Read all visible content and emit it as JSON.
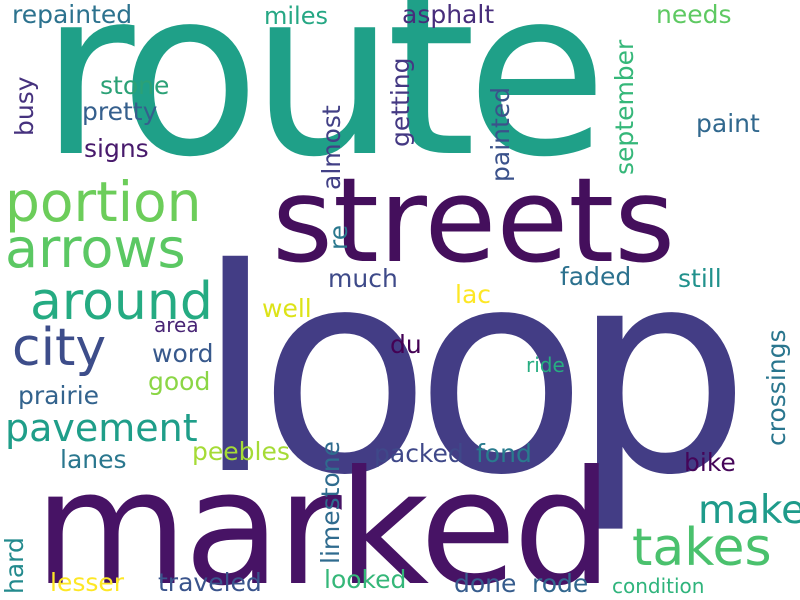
{
  "words": [
    {
      "text": "route",
      "color": "#1fa088",
      "vertical": false
    },
    {
      "text": "loop",
      "color": "#433d85",
      "vertical": false
    },
    {
      "text": "marked",
      "color": "#471365",
      "vertical": false
    },
    {
      "text": "streets",
      "color": "#440f5c",
      "vertical": false
    },
    {
      "text": "portion",
      "color": "#6ccd5a",
      "vertical": false
    },
    {
      "text": "arrows",
      "color": "#5bc863",
      "vertical": false
    },
    {
      "text": "around",
      "color": "#25ab82",
      "vertical": false
    },
    {
      "text": "city",
      "color": "#3d4d8a",
      "vertical": false
    },
    {
      "text": "takes",
      "color": "#4ac16d",
      "vertical": false
    },
    {
      "text": "pavement",
      "color": "#1f9e89",
      "vertical": false
    },
    {
      "text": "make",
      "color": "#1e9b8a",
      "vertical": false
    },
    {
      "text": "repainted",
      "color": "#2c728e",
      "vertical": false
    },
    {
      "text": "miles",
      "color": "#26a784",
      "vertical": false
    },
    {
      "text": "asphalt",
      "color": "#472d7b",
      "vertical": false
    },
    {
      "text": "needs",
      "color": "#5ec962",
      "vertical": false
    },
    {
      "text": "stone",
      "color": "#2ba176",
      "vertical": false
    },
    {
      "text": "pretty",
      "color": "#355f8d",
      "vertical": false
    },
    {
      "text": "signs",
      "color": "#481a6c",
      "vertical": false
    },
    {
      "text": "paint",
      "color": "#31688e",
      "vertical": false
    },
    {
      "text": "busy",
      "color": "#46327e",
      "vertical": true
    },
    {
      "text": "almost",
      "color": "#424086",
      "vertical": true
    },
    {
      "text": "getting",
      "color": "#443983",
      "vertical": true
    },
    {
      "text": "painted",
      "color": "#3b528b",
      "vertical": true
    },
    {
      "text": "september",
      "color": "#35b779",
      "vertical": true
    },
    {
      "text": "re",
      "color": "#2a788e",
      "vertical": true
    },
    {
      "text": "much",
      "color": "#3e4a89",
      "vertical": false
    },
    {
      "text": "lac",
      "color": "#fde725",
      "vertical": false
    },
    {
      "text": "faded",
      "color": "#2c718e",
      "vertical": false
    },
    {
      "text": "still",
      "color": "#21918c",
      "vertical": false
    },
    {
      "text": "well",
      "color": "#dde318",
      "vertical": false
    },
    {
      "text": "area",
      "color": "#482475",
      "vertical": false
    },
    {
      "text": "word",
      "color": "#38598c",
      "vertical": false
    },
    {
      "text": "du",
      "color": "#440154",
      "vertical": false
    },
    {
      "text": "ride",
      "color": "#27ad81",
      "vertical": false
    },
    {
      "text": "good",
      "color": "#8bd646",
      "vertical": false
    },
    {
      "text": "prairie",
      "color": "#33638d",
      "vertical": false
    },
    {
      "text": "crossings",
      "color": "#2a768e",
      "vertical": true
    },
    {
      "text": "limestone",
      "color": "#2f6b8e",
      "vertical": true
    },
    {
      "text": "peebles",
      "color": "#a5db36",
      "vertical": false
    },
    {
      "text": "packed",
      "color": "#3f4889",
      "vertical": false
    },
    {
      "text": "fond",
      "color": "#297b8e",
      "vertical": false
    },
    {
      "text": "lanes",
      "color": "#2a778e",
      "vertical": false
    },
    {
      "text": "bike",
      "color": "#450559",
      "vertical": false
    },
    {
      "text": "hard",
      "color": "#238a8d",
      "vertical": true
    },
    {
      "text": "lesser",
      "color": "#fde725",
      "vertical": false
    },
    {
      "text": "traveled",
      "color": "#3a548c",
      "vertical": false
    },
    {
      "text": "looked",
      "color": "#35b779",
      "vertical": false
    },
    {
      "text": "done",
      "color": "#365c8d",
      "vertical": false
    },
    {
      "text": "rode",
      "color": "#31668e",
      "vertical": false
    },
    {
      "text": "condition",
      "color": "#2fb47c",
      "vertical": false
    }
  ]
}
